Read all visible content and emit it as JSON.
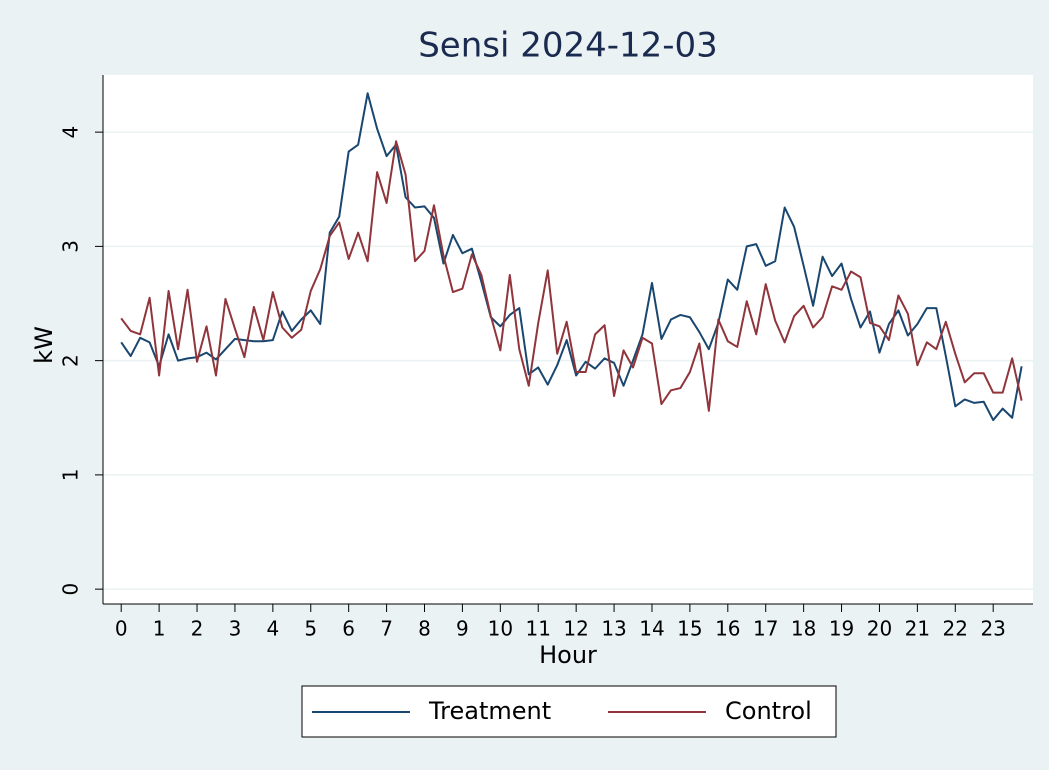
{
  "chart_data": {
    "type": "line",
    "title": "Sensi 2024-12-03",
    "xlabel": "Hour",
    "ylabel": "kW",
    "x": [
      0,
      0.25,
      0.5,
      0.75,
      1,
      1.25,
      1.5,
      1.75,
      2,
      2.25,
      2.5,
      2.75,
      3,
      3.25,
      3.5,
      3.75,
      4,
      4.25,
      4.5,
      4.75,
      5,
      5.25,
      5.5,
      5.75,
      6,
      6.25,
      6.5,
      6.75,
      7,
      7.25,
      7.5,
      7.75,
      8,
      8.25,
      8.5,
      8.75,
      9,
      9.25,
      9.5,
      9.75,
      10,
      10.25,
      10.5,
      10.75,
      11,
      11.25,
      11.5,
      11.75,
      12,
      12.25,
      12.5,
      12.75,
      13,
      13.25,
      13.5,
      13.75,
      14,
      14.25,
      14.5,
      14.75,
      15,
      15.25,
      15.5,
      15.75,
      16,
      16.25,
      16.5,
      16.75,
      17,
      17.25,
      17.5,
      17.75,
      18,
      18.25,
      18.5,
      18.75,
      19,
      19.25,
      19.5,
      19.75,
      20,
      20.25,
      20.5,
      20.75,
      21,
      21.25,
      21.5,
      21.75,
      22,
      22.25,
      22.5,
      22.75,
      23,
      23.25,
      23.5,
      23.75
    ],
    "series": [
      {
        "name": "Treatment",
        "color": "#1a476f",
        "values": [
          2.16,
          2.04,
          2.2,
          2.16,
          1.95,
          2.23,
          2.0,
          2.02,
          2.03,
          2.07,
          2.01,
          2.1,
          2.19,
          2.18,
          2.17,
          2.17,
          2.18,
          2.43,
          2.26,
          2.36,
          2.44,
          2.32,
          3.12,
          3.26,
          3.83,
          3.89,
          4.34,
          4.03,
          3.79,
          3.89,
          3.43,
          3.34,
          3.35,
          3.25,
          2.85,
          3.1,
          2.94,
          2.98,
          2.69,
          2.38,
          2.3,
          2.4,
          2.46,
          1.88,
          1.94,
          1.79,
          1.96,
          2.18,
          1.87,
          1.99,
          1.93,
          2.02,
          1.98,
          1.78,
          2.0,
          2.23,
          2.68,
          2.19,
          2.36,
          2.4,
          2.38,
          2.25,
          2.1,
          2.33,
          2.71,
          2.62,
          3.0,
          3.02,
          2.83,
          2.87,
          3.34,
          3.17,
          2.83,
          2.48,
          2.91,
          2.74,
          2.85,
          2.54,
          2.29,
          2.43,
          2.07,
          2.32,
          2.44,
          2.22,
          2.32,
          2.46,
          2.46,
          2.04,
          1.6,
          1.66,
          1.63,
          1.64,
          1.48,
          1.58,
          1.5,
          1.95
        ]
      },
      {
        "name": "Control",
        "color": "#90353b",
        "values": [
          2.37,
          2.26,
          2.23,
          2.55,
          1.87,
          2.61,
          2.1,
          2.62,
          1.99,
          2.3,
          1.87,
          2.54,
          2.28,
          2.03,
          2.47,
          2.18,
          2.6,
          2.29,
          2.2,
          2.27,
          2.61,
          2.8,
          3.09,
          3.21,
          2.89,
          3.12,
          2.87,
          3.65,
          3.38,
          3.92,
          3.63,
          2.87,
          2.96,
          3.36,
          2.92,
          2.6,
          2.63,
          2.93,
          2.75,
          2.39,
          2.09,
          2.75,
          2.1,
          1.78,
          2.33,
          2.79,
          2.06,
          2.34,
          1.9,
          1.9,
          2.23,
          2.31,
          1.69,
          2.09,
          1.94,
          2.2,
          2.15,
          1.62,
          1.74,
          1.76,
          1.9,
          2.15,
          1.56,
          2.36,
          2.17,
          2.12,
          2.52,
          2.23,
          2.67,
          2.35,
          2.16,
          2.39,
          2.48,
          2.29,
          2.38,
          2.65,
          2.62,
          2.78,
          2.73,
          2.33,
          2.3,
          2.18,
          2.57,
          2.41,
          1.96,
          2.16,
          2.1,
          2.34,
          2.06,
          1.81,
          1.89,
          1.89,
          1.72,
          1.72,
          2.02,
          1.65
        ]
      }
    ],
    "xlim": [
      -0.48,
      24.05
    ],
    "xticks": [
      0,
      1,
      2,
      3,
      4,
      5,
      6,
      7,
      8,
      9,
      10,
      11,
      12,
      13,
      14,
      15,
      16,
      17,
      18,
      19,
      20,
      21,
      22,
      23
    ],
    "ylim": [
      -0.13,
      4.5
    ],
    "yticks": [
      0,
      1,
      2,
      3,
      4
    ],
    "grid": true,
    "legend": "bottom"
  }
}
